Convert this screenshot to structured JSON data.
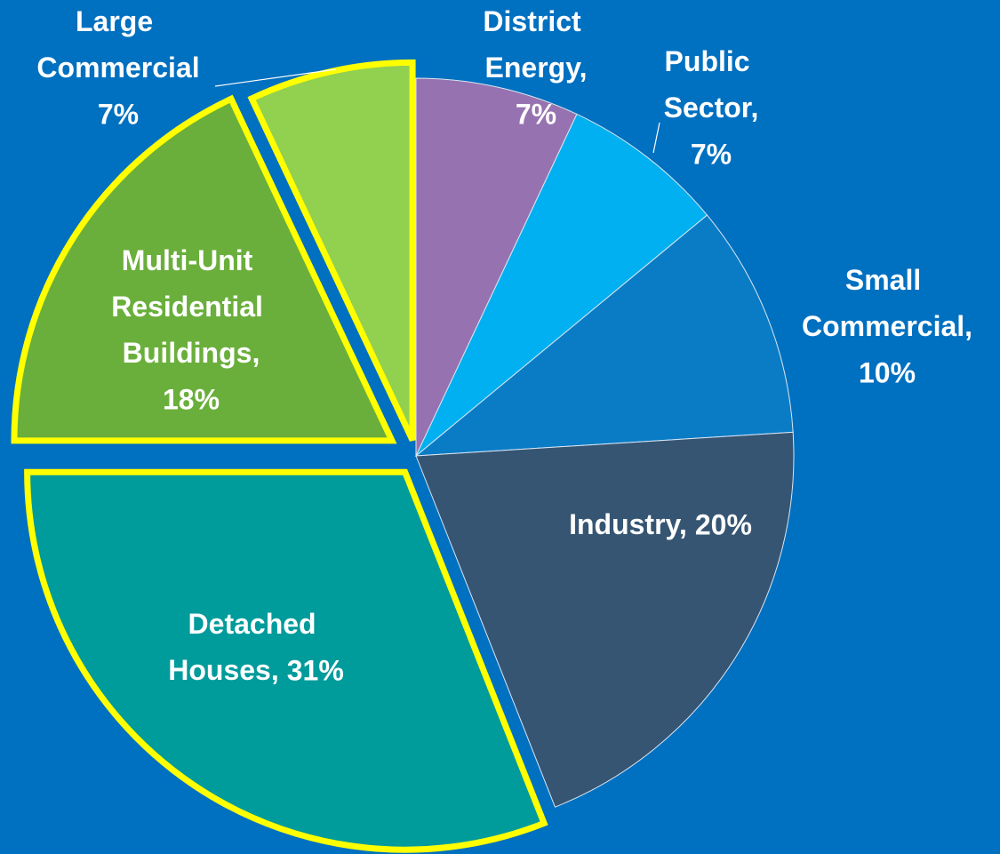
{
  "chart_data": {
    "type": "pie",
    "categories": [
      "District Energy,",
      "Public Sector,",
      "Small Commercial,",
      "Industry,",
      "Detached Houses,",
      "Multi-Unit Residential Buildings,",
      "Large Commercial"
    ],
    "values": [
      7,
      7,
      10,
      20,
      31,
      18,
      7
    ],
    "value_labels": [
      "7%",
      "7%",
      "10%",
      "20%",
      "31%",
      "18%",
      "7%"
    ],
    "colors": [
      "#9673b0",
      "#00b0f0",
      "#0a7cc6",
      "#365573",
      "#009b9b",
      "#6aaf3b",
      "#92d050"
    ],
    "explode": [
      false,
      false,
      false,
      false,
      true,
      true,
      true
    ],
    "highlight_color": "#ffff00",
    "background": "#0070c0"
  }
}
